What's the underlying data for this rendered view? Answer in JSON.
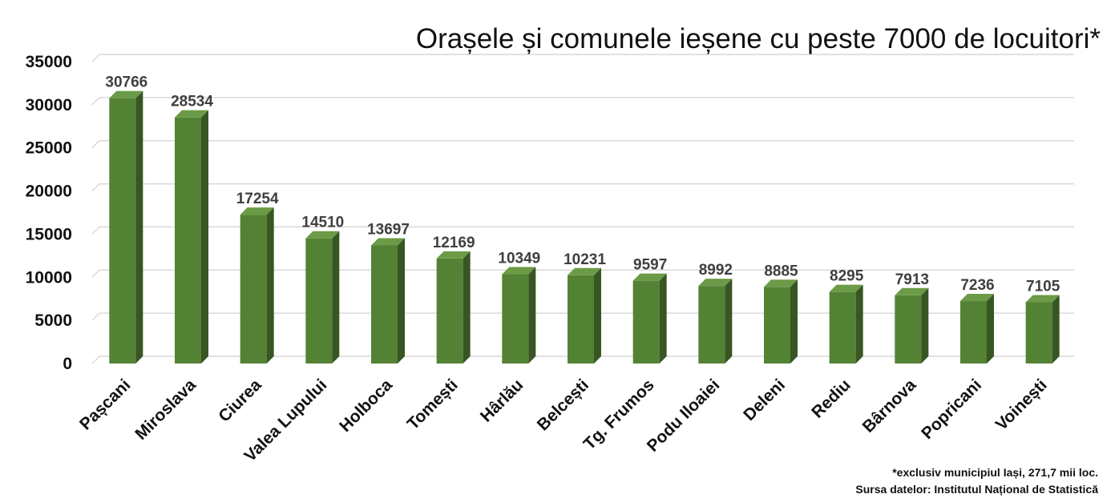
{
  "chart_data": {
    "type": "bar",
    "title": "Orașele și comunele ieșene cu peste 7000 de locuitori*",
    "xlabel": "",
    "ylabel": "",
    "categories": [
      "Pașcani",
      "Miroslava",
      "Ciurea",
      "Valea Lupului",
      "Holboca",
      "Tomești",
      "Hârlău",
      "Belcești",
      "Tg. Frumos",
      "Podu Iloaiei",
      "Deleni",
      "Rediu",
      "Bârnova",
      "Popricani",
      "Voinești"
    ],
    "values": [
      30766,
      28534,
      17254,
      14510,
      13697,
      12169,
      10349,
      10231,
      9597,
      8992,
      8885,
      8295,
      7913,
      7236,
      7105
    ],
    "ylim": [
      0,
      35000
    ],
    "yticks": [
      0,
      5000,
      10000,
      15000,
      20000,
      25000,
      30000,
      35000
    ],
    "grid": true,
    "legend": "none",
    "bar_style": "3d",
    "colors": {
      "bar_front": "#548235",
      "bar_side": "#375623",
      "bar_top": "#6b9b46"
    }
  },
  "footnotes": {
    "note": "*exclusiv municipiul Iași, 271,7 mii loc.",
    "source": "Sursa datelor: Institutul Național de Statistică"
  }
}
